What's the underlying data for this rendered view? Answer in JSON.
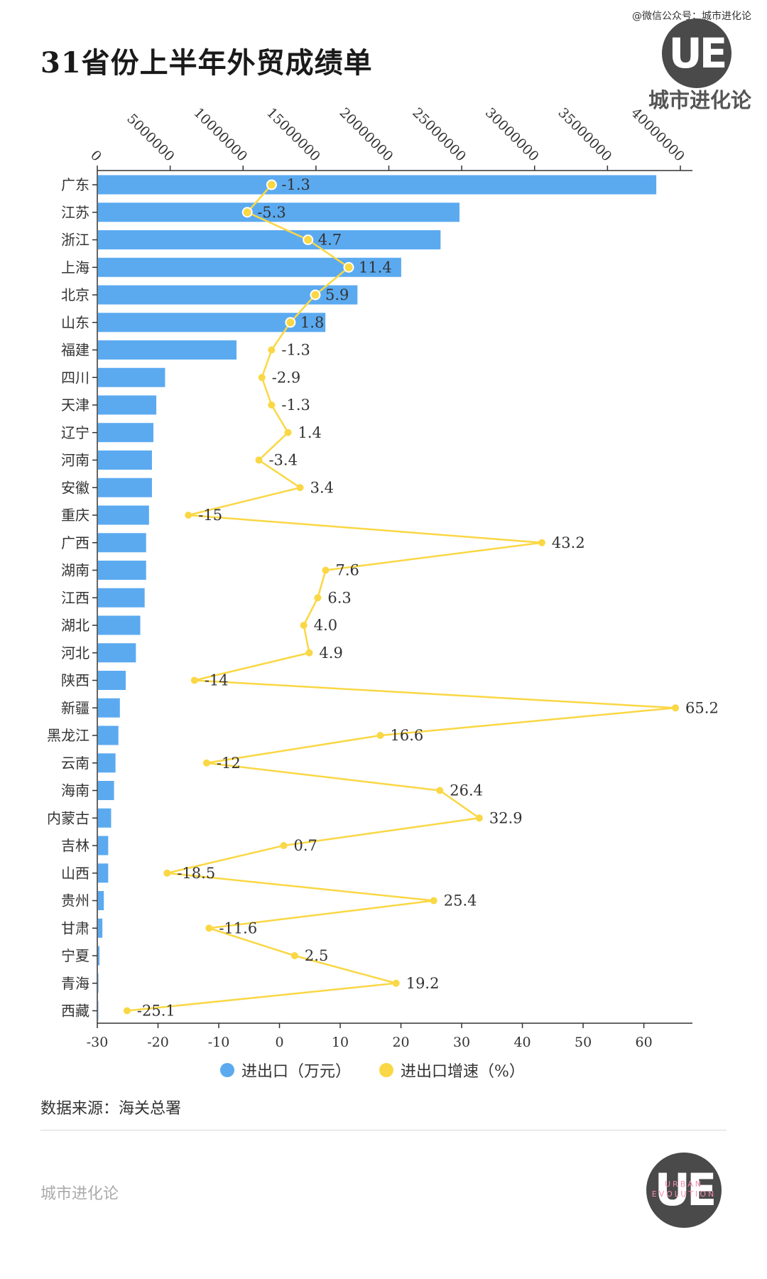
{
  "watermark_top": "@微信公众号：城市进化论",
  "title": "31省份上半年外贸成绩单",
  "logo": {
    "mark": "UE",
    "brand": "城市进化论",
    "sub": "URBAN EVOLUTION"
  },
  "source": "数据来源：海关总署",
  "footer_brand": "城市进化论",
  "legend": {
    "bar_label": "进出口（万元）",
    "line_label": "进出口增速（%）"
  },
  "colors": {
    "bar": "#5baaf0",
    "line": "#fad744",
    "axis": "#333333",
    "rule": "#d9d9d9"
  },
  "chart_data": {
    "type": "bar",
    "orientation": "horizontal",
    "categories": [
      "广东",
      "江苏",
      "浙江",
      "上海",
      "北京",
      "山东",
      "福建",
      "四川",
      "天津",
      "辽宁",
      "河南",
      "安徽",
      "重庆",
      "广西",
      "湖南",
      "江西",
      "湖北",
      "河北",
      "陕西",
      "新疆",
      "黑龙江",
      "云南",
      "海南",
      "内蒙古",
      "吉林",
      "山西",
      "贵州",
      "甘肃",
      "宁夏",
      "青海",
      "西藏"
    ],
    "series": [
      {
        "name": "进出口（万元）",
        "type": "bar",
        "axis": "top",
        "values": [
          38300000,
          24800000,
          23500000,
          20800000,
          17800000,
          15600000,
          9500000,
          4600000,
          4000000,
          3800000,
          3700000,
          3700000,
          3500000,
          3300000,
          3300000,
          3200000,
          2900000,
          2600000,
          1900000,
          1500000,
          1400000,
          1200000,
          1100000,
          900000,
          700000,
          700000,
          400000,
          300000,
          100000,
          30000,
          10000
        ]
      },
      {
        "name": "进出口增速（%）",
        "type": "line",
        "axis": "bottom",
        "values": [
          -1.3,
          -5.3,
          4.7,
          11.4,
          5.9,
          1.8,
          -1.3,
          -2.9,
          -1.3,
          1.4,
          -3.4,
          3.4,
          -15,
          43.2,
          7.6,
          6.3,
          4.0,
          4.9,
          -14,
          65.2,
          16.6,
          -12,
          26.4,
          32.9,
          0.7,
          -18.5,
          25.4,
          -11.6,
          2.5,
          19.2,
          -25.1
        ],
        "labels": [
          "-1.3",
          "-5.3",
          "4.7",
          "11.4",
          "5.9",
          "1.8",
          "-1.3",
          "-2.9",
          "-1.3",
          "1.4",
          "-3.4",
          "3.4",
          "-15",
          "43.2",
          "7.6",
          "6.3",
          "4.0",
          "4.9",
          "-14",
          "65.2",
          "16.6",
          "-12",
          "26.4",
          "32.9",
          "0.7",
          "-18.5",
          "25.4",
          "-11.6",
          "2.5",
          "19.2",
          "-25.1"
        ]
      }
    ],
    "top_axis": {
      "range": [
        0,
        40000000
      ],
      "ticks": [
        "0",
        "5000000",
        "10000000",
        "15000000",
        "20000000",
        "25000000",
        "30000000",
        "35000000",
        "40000000"
      ]
    },
    "bottom_axis": {
      "range": [
        -30,
        68
      ],
      "ticks": [
        "-30",
        "-20",
        "-10",
        "0",
        "10",
        "20",
        "30",
        "40",
        "50",
        "60"
      ]
    },
    "legend_position": "bottom"
  }
}
